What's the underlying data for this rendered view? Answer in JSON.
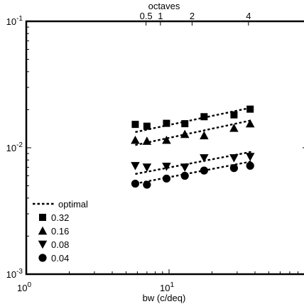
{
  "chart_data": {
    "type": "scatter",
    "title": "",
    "xlabel": "bw (c/deq)",
    "ylabel": "",
    "x_scale": "log",
    "y_scale": "log",
    "xlim": [
      1,
      100
    ],
    "ylim": [
      0.001,
      0.1
    ],
    "x_ticks": [
      {
        "value": 1,
        "base": "10",
        "exp": "0"
      },
      {
        "value": 10,
        "base": "10",
        "exp": "1"
      }
    ],
    "y_ticks": [
      {
        "value": 0.001,
        "base": "10",
        "exp": "-3"
      },
      {
        "value": 0.01,
        "base": "10",
        "exp": "-2"
      },
      {
        "value": 0.1,
        "base": "10",
        "exp": "-1"
      }
    ],
    "top_axis": {
      "label": "octaves",
      "ticks": [
        {
          "label": "0.5",
          "x": 6.9
        },
        {
          "label": "1",
          "x": 8.7
        },
        {
          "label": "2",
          "x": 14.5
        },
        {
          "label": "4",
          "x": 36.0
        }
      ]
    },
    "legend": {
      "position": "bottom-left",
      "entries": [
        "optimal",
        "0.32",
        "0.16",
        "0.08",
        "0.04"
      ]
    },
    "series": [
      {
        "name": "0.32",
        "marker": "square",
        "points": [
          {
            "x": 5.8,
            "y": 0.0153
          },
          {
            "x": 7.0,
            "y": 0.0148
          },
          {
            "x": 9.6,
            "y": 0.0156
          },
          {
            "x": 12.9,
            "y": 0.0155
          },
          {
            "x": 17.6,
            "y": 0.0176
          },
          {
            "x": 28.5,
            "y": 0.0182
          },
          {
            "x": 37.0,
            "y": 0.0202
          }
        ],
        "fit": {
          "x": [
            5.8,
            38.0
          ],
          "y": [
            0.0133,
            0.0208
          ]
        }
      },
      {
        "name": "0.16",
        "marker": "triangle-up",
        "points": [
          {
            "x": 5.8,
            "y": 0.0115
          },
          {
            "x": 7.0,
            "y": 0.0113
          },
          {
            "x": 9.6,
            "y": 0.0115
          },
          {
            "x": 12.9,
            "y": 0.0128
          },
          {
            "x": 17.6,
            "y": 0.0125
          },
          {
            "x": 28.5,
            "y": 0.0143
          },
          {
            "x": 37.0,
            "y": 0.0155
          }
        ],
        "fit": {
          "x": [
            5.8,
            38.0
          ],
          "y": [
            0.0105,
            0.0165
          ]
        }
      },
      {
        "name": "0.08",
        "marker": "triangle-down",
        "points": [
          {
            "x": 5.8,
            "y": 0.0072
          },
          {
            "x": 7.0,
            "y": 0.007
          },
          {
            "x": 9.6,
            "y": 0.0071
          },
          {
            "x": 12.9,
            "y": 0.007
          },
          {
            "x": 17.6,
            "y": 0.0083
          },
          {
            "x": 28.5,
            "y": 0.0083
          },
          {
            "x": 37.0,
            "y": 0.0085
          }
        ],
        "fit": {
          "x": [
            5.8,
            38.0
          ],
          "y": [
            0.0062,
            0.0093
          ]
        }
      },
      {
        "name": "0.04",
        "marker": "circle",
        "points": [
          {
            "x": 5.8,
            "y": 0.0052
          },
          {
            "x": 7.0,
            "y": 0.0051
          },
          {
            "x": 9.6,
            "y": 0.0057
          },
          {
            "x": 12.9,
            "y": 0.006
          },
          {
            "x": 17.6,
            "y": 0.0066
          },
          {
            "x": 28.5,
            "y": 0.0069
          },
          {
            "x": 37.0,
            "y": 0.0072
          }
        ],
        "fit": {
          "x": [
            5.8,
            38.0
          ],
          "y": [
            0.0052,
            0.0078
          ]
        }
      }
    ]
  }
}
